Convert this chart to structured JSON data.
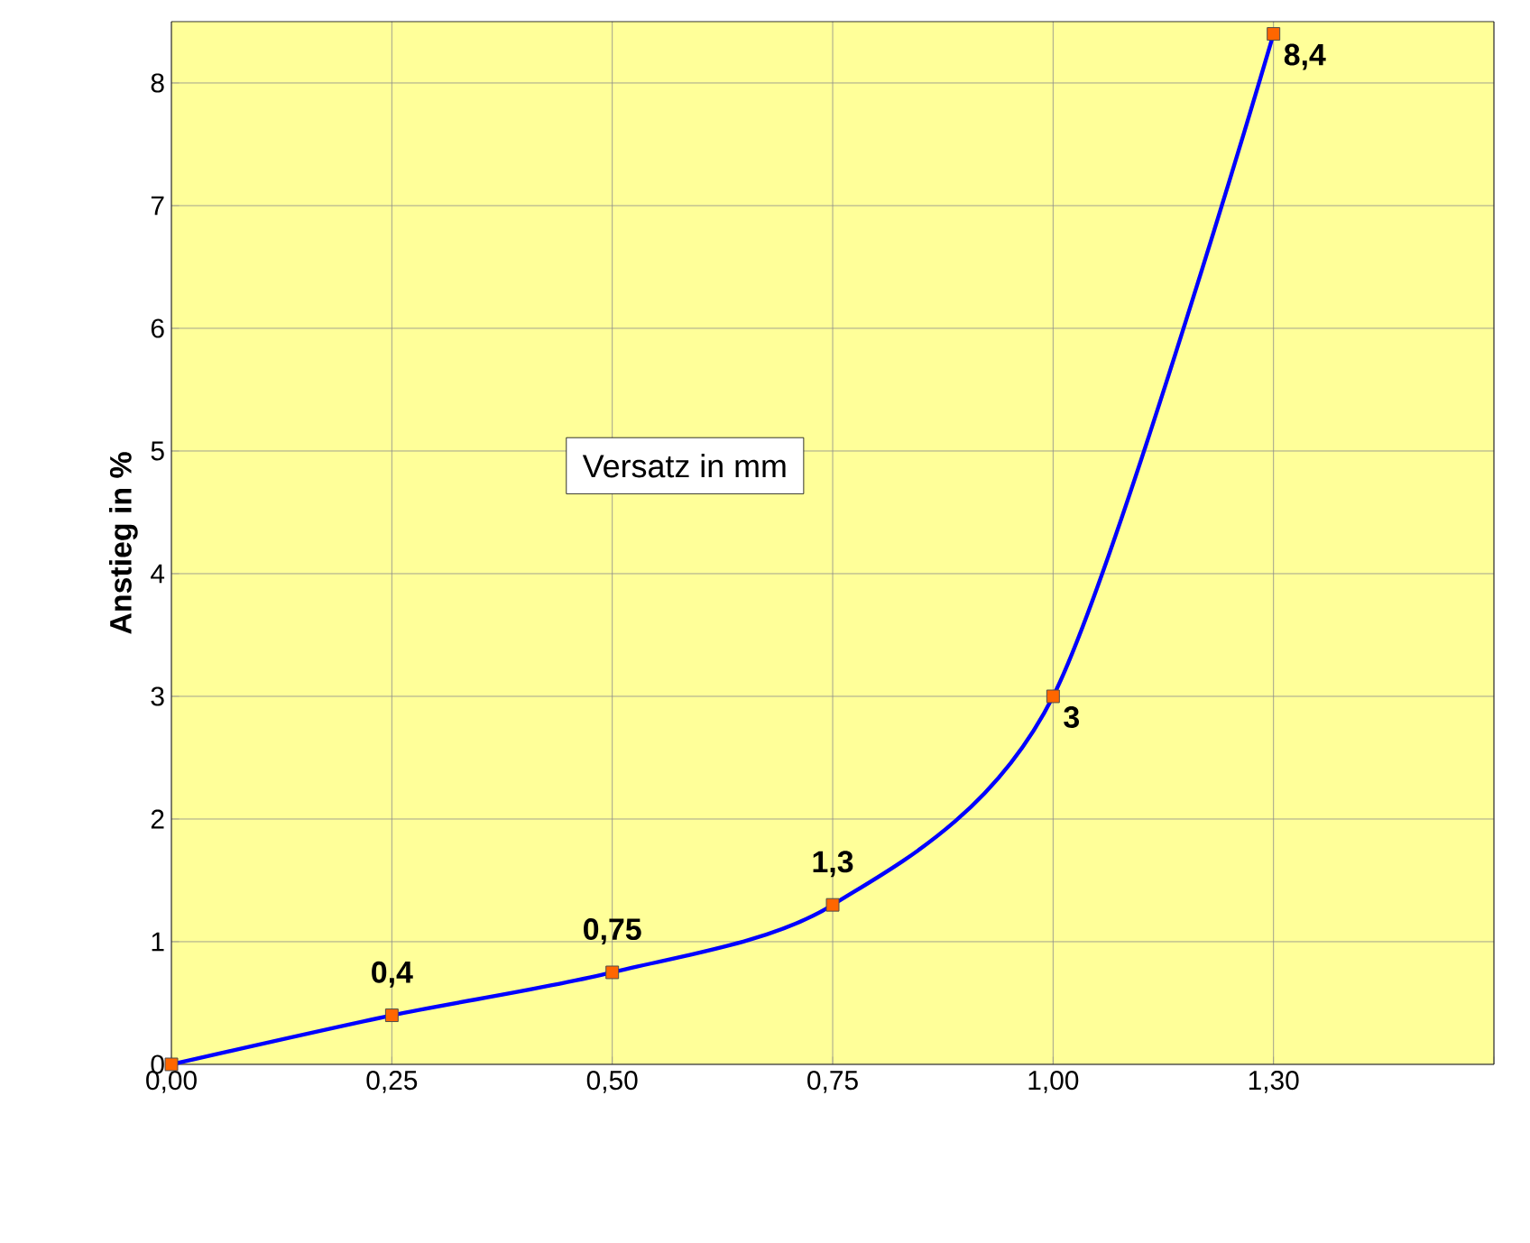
{
  "chart_data": {
    "type": "line",
    "xlabel": "Versatz in mm",
    "ylabel": "Anstieg in  %",
    "categories": [
      "0,00",
      "0,25",
      "0,50",
      "0,75",
      "1,00",
      "1,30",
      null
    ],
    "series": [
      {
        "color": "#0000ff",
        "values": [
          0,
          0.4,
          0.75,
          1.3,
          3,
          8.4,
          null
        ],
        "value_labels": [
          null,
          "0,4",
          "0,75",
          "1,3",
          "3",
          "8,4",
          null
        ]
      }
    ],
    "ylim": [
      0,
      8.5
    ],
    "yticks": [
      0,
      1,
      2,
      3,
      4,
      5,
      6,
      7,
      8
    ],
    "grid": true,
    "marker": "square",
    "line_style": "solid"
  }
}
